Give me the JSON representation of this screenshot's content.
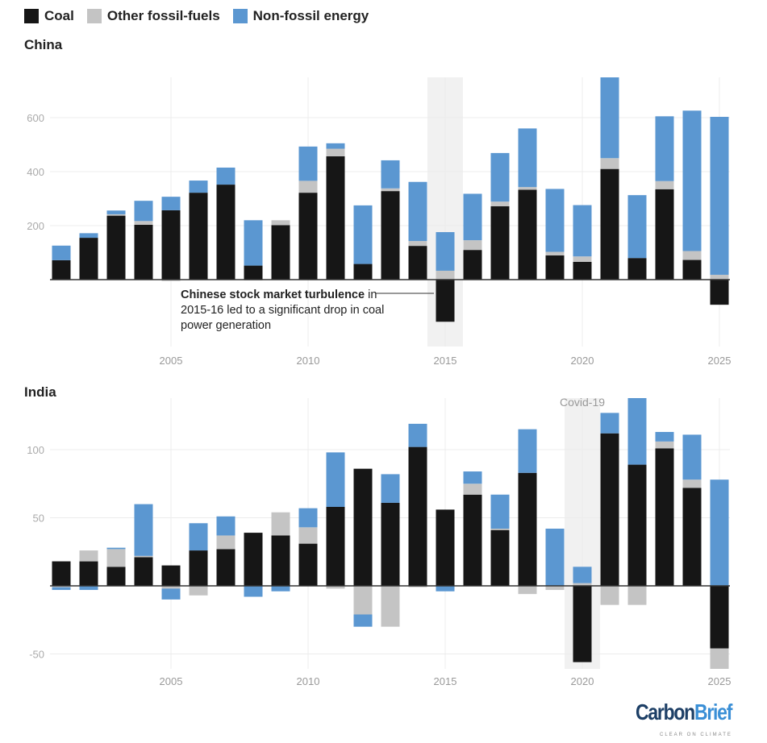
{
  "legend": [
    {
      "label": "Coal",
      "color": "#161616"
    },
    {
      "label": "Other fossil-fuels",
      "color": "#c4c4c4"
    },
    {
      "label": "Non-fossil energy",
      "color": "#5b97d1"
    }
  ],
  "annotation": {
    "bold": "Chinese stock market turbulence",
    "rest": " in 2015-16 led to a significant drop in coal power generation"
  },
  "logo": {
    "name": "CarbonBrief",
    "part1": "Carbon",
    "part2": "Brief",
    "tagline": "CLEAR ON CLIMATE"
  },
  "chart_data": [
    {
      "type": "bar",
      "stacked": true,
      "title": "China",
      "years": [
        2001,
        2002,
        2003,
        2004,
        2005,
        2006,
        2007,
        2008,
        2009,
        2010,
        2011,
        2012,
        2013,
        2014,
        2015,
        2016,
        2017,
        2018,
        2019,
        2020,
        2021,
        2022,
        2023,
        2024,
        2025
      ],
      "xticks": [
        "2005",
        "2010",
        "2015",
        "2020",
        "2025"
      ],
      "yticks": [
        "200",
        "400",
        "600"
      ],
      "ylim": [
        -240,
        750
      ],
      "highlight_year": 2015,
      "series": [
        {
          "name": "Coal",
          "values": [
            72,
            155,
            237,
            203,
            257,
            322,
            352,
            52,
            202,
            322,
            457,
            58,
            328,
            125,
            -156,
            110,
            272,
            333,
            90,
            66,
            410,
            80,
            335,
            73,
            -93
          ]
        },
        {
          "name": "Other fossil-fuels",
          "values": [
            0,
            0,
            5,
            14,
            -5,
            0,
            0,
            -3,
            18,
            44,
            28,
            0,
            10,
            18,
            33,
            36,
            17,
            10,
            13,
            20,
            40,
            0,
            30,
            33,
            18
          ]
        },
        {
          "name": "Non-fossil energy",
          "values": [
            54,
            17,
            14,
            75,
            50,
            45,
            63,
            168,
            0,
            127,
            20,
            217,
            104,
            219,
            143,
            172,
            180,
            217,
            233,
            190,
            303,
            233,
            240,
            520,
            585
          ]
        }
      ]
    },
    {
      "type": "bar",
      "stacked": true,
      "title": "India",
      "years": [
        2001,
        2002,
        2003,
        2004,
        2005,
        2006,
        2007,
        2008,
        2009,
        2010,
        2011,
        2012,
        2013,
        2014,
        2015,
        2016,
        2017,
        2018,
        2019,
        2020,
        2021,
        2022,
        2023,
        2024,
        2025
      ],
      "xticks": [
        "2005",
        "2010",
        "2015",
        "2020",
        "2025"
      ],
      "yticks": [
        "-50",
        "50",
        "100"
      ],
      "ylim": [
        -62,
        137
      ],
      "highlight_year": 2020,
      "highlight_label": "Covid-19",
      "series": [
        {
          "name": "Coal",
          "values": [
            18,
            18,
            14,
            21,
            15,
            26,
            27,
            39,
            37,
            31,
            58,
            86,
            61,
            102,
            56,
            67,
            41,
            83,
            0,
            -56,
            112,
            89,
            101,
            72,
            -46
          ]
        },
        {
          "name": "Other fossil-fuels",
          "values": [
            -1,
            8,
            13,
            1,
            -2,
            -7,
            10,
            0,
            17,
            12,
            -2,
            -21,
            -30,
            -1,
            0,
            8,
            1,
            -6,
            -3,
            2,
            -14,
            -14,
            5,
            6,
            -16
          ]
        },
        {
          "name": "Non-fossil energy",
          "values": [
            -2,
            -3,
            1,
            38,
            -8,
            20,
            14,
            -8,
            -4,
            14,
            40,
            -9,
            21,
            17,
            -4,
            9,
            25,
            32,
            42,
            12,
            15,
            50,
            7,
            33,
            78
          ]
        }
      ]
    }
  ]
}
